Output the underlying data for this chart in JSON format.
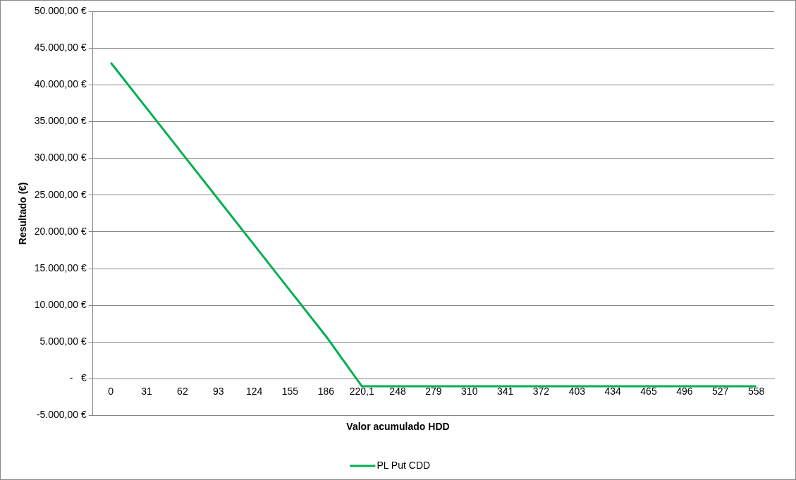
{
  "chart_data": {
    "type": "line",
    "xlabel": "Valor acumulado HDD",
    "ylabel": "Resultado (€)",
    "categories": [
      "0",
      "31",
      "62",
      "93",
      "124",
      "155",
      "186",
      "220,1",
      "248",
      "279",
      "310",
      "341",
      "372",
      "403",
      "434",
      "465",
      "496",
      "527",
      "558"
    ],
    "series": [
      {
        "name": "PL Put CDD",
        "color": "#00b050",
        "values": [
          43000,
          36800,
          30600,
          24400,
          18200,
          12000,
          5800,
          -1000,
          -1000,
          -1000,
          -1000,
          -1000,
          -1000,
          -1000,
          -1000,
          -1000,
          -1000,
          -1000,
          -1000
        ]
      }
    ],
    "ylim": [
      -5000,
      50000
    ],
    "yticks": [
      {
        "value": -5000,
        "label": "-5.000,00 €"
      },
      {
        "value": 0,
        "label": "-   €"
      },
      {
        "value": 5000,
        "label": "5.000,00 €"
      },
      {
        "value": 10000,
        "label": "10.000,00 €"
      },
      {
        "value": 15000,
        "label": "15.000,00 €"
      },
      {
        "value": 20000,
        "label": "20.000,00 €"
      },
      {
        "value": 25000,
        "label": "25.000,00 €"
      },
      {
        "value": 30000,
        "label": "30.000,00 €"
      },
      {
        "value": 35000,
        "label": "35.000,00 €"
      },
      {
        "value": 40000,
        "label": "40.000,00 €"
      },
      {
        "value": 45000,
        "label": "45.000,00 €"
      },
      {
        "value": 50000,
        "label": "50.000,00 €"
      }
    ],
    "grid": "y",
    "legend": "bottom",
    "marker": "none",
    "line_style": "solid"
  }
}
